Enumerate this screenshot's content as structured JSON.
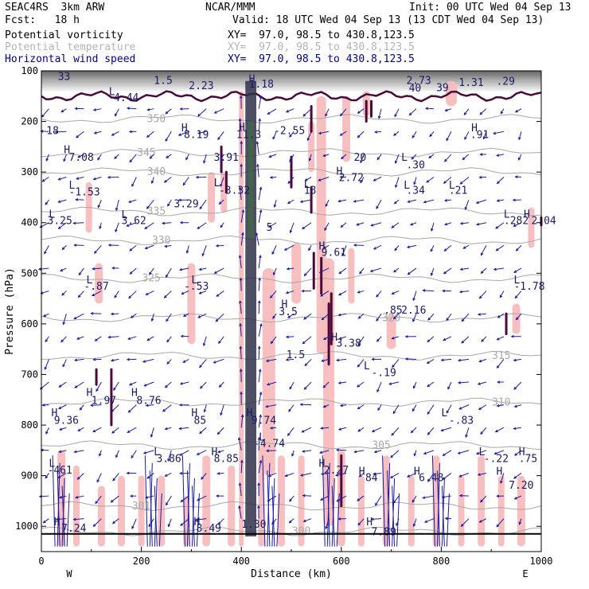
{
  "header": {
    "model": "SEAC4RS  3km ARW",
    "center": "NCAR/MMM",
    "init": "Init: 00 UTC Wed 04 Sep 13",
    "fcst": "Fcst:   18 h",
    "valid": "Valid: 18 UTC Wed 04 Sep 13 (13 CDT Wed 04 Sep 13)"
  },
  "fields": [
    {
      "name": "Potential vorticity",
      "xy": "XY=  97.0, 98.5 to 430.8,123.5",
      "color": "#000000"
    },
    {
      "name": "Potential temperature",
      "xy": "XY=  97.0, 98.5 to 430.8,123.5",
      "color": "#b4b4b4"
    },
    {
      "name": "Horizontal wind speed",
      "xy": "XY=  97.0, 98.5 to 430.8,123.5",
      "color": "#00008b"
    }
  ],
  "colors": {
    "pv_contour": "#4a0a3c",
    "pv_fill": "#f7bcbc",
    "theta": "#a8a8a8",
    "wind": "#1a1aa6",
    "hl": "#1a1a66",
    "upper_shade": "#6e6e6e"
  },
  "chart_data": {
    "type": "cross-section",
    "xlabel": "Distance (km)",
    "ylabel": "Pressure (hPa)",
    "xlim": [
      0,
      1000
    ],
    "ylim": [
      1050,
      100
    ],
    "x_ticks": [
      "0",
      "200",
      "400",
      "600",
      "800",
      "1000"
    ],
    "y_ticks": [
      "100",
      "200",
      "300",
      "400",
      "500",
      "600",
      "700",
      "800",
      "900",
      "1000"
    ],
    "endpoints": {
      "left": "W",
      "right": "E"
    },
    "theta_isentropes": [
      {
        "label": "350",
        "p": 195
      },
      {
        "label": "345",
        "p": 262
      },
      {
        "label": "340",
        "p": 300
      },
      {
        "label": "335",
        "p": 378
      },
      {
        "label": "330",
        "p": 435
      },
      {
        "label": "325",
        "p": 510
      },
      {
        "label": "320",
        "p": 588
      },
      {
        "label": "315",
        "p": 663
      },
      {
        "label": "310",
        "p": 755
      },
      {
        "label": "305",
        "p": 840
      },
      {
        "label": "301",
        "p": 960
      },
      {
        "label": "300",
        "p": 1010
      }
    ],
    "hl_labels": [
      {
        "t": "33",
        "x": 33,
        "p": 110
      },
      {
        "t": "1.5",
        "x": 225,
        "p": 118
      },
      {
        "t": "2.23",
        "x": 295,
        "p": 128
      },
      {
        "t": "H",
        "x": 415,
        "p": 115
      },
      {
        "t": "1.18",
        "x": 415,
        "p": 125
      },
      {
        "t": "2.73",
        "x": 730,
        "p": 118
      },
      {
        "t": "40",
        "x": 735,
        "p": 133
      },
      {
        "t": "39",
        "x": 790,
        "p": 132
      },
      {
        "t": "1.31",
        "x": 835,
        "p": 122
      },
      {
        "t": ".29",
        "x": 910,
        "p": 120
      },
      {
        "t": "L",
        "x": 135,
        "p": 140
      },
      {
        "t": "4.44",
        "x": 145,
        "p": 152
      },
      {
        "t": "18",
        "x": 10,
        "p": 217
      },
      {
        "t": "H",
        "x": 280,
        "p": 212
      },
      {
        "t": "8.19",
        "x": 285,
        "p": 225
      },
      {
        "t": "H",
        "x": 395,
        "p": 210
      },
      {
        "t": "11.3",
        "x": 390,
        "p": 225
      },
      {
        "t": "-2.55",
        "x": 465,
        "p": 217
      },
      {
        "t": "H",
        "x": 860,
        "p": 212
      },
      {
        "t": ".91",
        "x": 858,
        "p": 225
      },
      {
        "t": "H",
        "x": 45,
        "p": 255
      },
      {
        "t": "7.08",
        "x": 55,
        "p": 270
      },
      {
        "t": "3.91",
        "x": 345,
        "p": 270
      },
      {
        "t": "20",
        "x": 625,
        "p": 270
      },
      {
        "t": "L",
        "x": 720,
        "p": 270
      },
      {
        "t": ".30",
        "x": 730,
        "p": 285
      },
      {
        "t": "H",
        "x": 590,
        "p": 297
      },
      {
        "t": "2.72",
        "x": 595,
        "p": 310
      },
      {
        "t": "L",
        "x": 55,
        "p": 325
      },
      {
        "t": "-1.53",
        "x": 55,
        "p": 338
      },
      {
        "t": "L",
        "x": 345,
        "p": 320
      },
      {
        "t": "-3.32",
        "x": 355,
        "p": 335
      },
      {
        "t": "L",
        "x": 525,
        "p": 323
      },
      {
        "t": "18",
        "x": 525,
        "p": 335
      },
      {
        "t": "L",
        "x": 725,
        "p": 325
      },
      {
        "t": ".34",
        "x": 730,
        "p": 335
      },
      {
        "t": "L",
        "x": 815,
        "p": 325
      },
      {
        "t": ".21",
        "x": 815,
        "p": 335
      },
      {
        "t": "3.29",
        "x": 265,
        "p": 362
      },
      {
        "t": "L",
        "x": 15,
        "p": 382
      },
      {
        "t": "3.25",
        "x": 12,
        "p": 395
      },
      {
        "t": "L",
        "x": 160,
        "p": 383
      },
      {
        "t": "3.62",
        "x": 160,
        "p": 395
      },
      {
        "t": "L",
        "x": 925,
        "p": 382
      },
      {
        "t": ".282",
        "x": 925,
        "p": 395
      },
      {
        "t": "H",
        "x": 965,
        "p": 382
      },
      {
        "t": "2.04",
        "x": 980,
        "p": 395
      },
      {
        "t": "5",
        "x": 450,
        "p": 408
      },
      {
        "t": "H",
        "x": 555,
        "p": 445
      },
      {
        "t": "9.61",
        "x": 560,
        "p": 458
      },
      {
        "t": "L",
        "x": 90,
        "p": 512
      },
      {
        "t": "-.87",
        "x": 85,
        "p": 525
      },
      {
        "t": "L",
        "x": 300,
        "p": 512
      },
      {
        "t": "-.53",
        "x": 285,
        "p": 525
      },
      {
        "t": "L",
        "x": 945,
        "p": 512
      },
      {
        "t": "-1.78",
        "x": 945,
        "p": 525
      },
      {
        "t": "H",
        "x": 480,
        "p": 560
      },
      {
        "t": "3.5",
        "x": 475,
        "p": 575
      },
      {
        "t": ".85",
        "x": 685,
        "p": 572
      },
      {
        "t": "2.16",
        "x": 720,
        "p": 572
      },
      {
        "t": "H",
        "x": 580,
        "p": 625
      },
      {
        "t": "3.38",
        "x": 590,
        "p": 637
      },
      {
        "t": "1.5",
        "x": 490,
        "p": 660
      },
      {
        "t": "L",
        "x": 645,
        "p": 682
      },
      {
        "t": "-.19",
        "x": 660,
        "p": 695
      },
      {
        "t": "H",
        "x": 90,
        "p": 735
      },
      {
        "t": "1.97",
        "x": 100,
        "p": 750
      },
      {
        "t": "H",
        "x": 180,
        "p": 735
      },
      {
        "t": "8.76",
        "x": 190,
        "p": 750
      },
      {
        "t": "H",
        "x": 20,
        "p": 775
      },
      {
        "t": "9.36",
        "x": 25,
        "p": 790
      },
      {
        "t": "H",
        "x": 300,
        "p": 775
      },
      {
        "t": "85",
        "x": 305,
        "p": 790
      },
      {
        "t": "H",
        "x": 410,
        "p": 775
      },
      {
        "t": "9.74",
        "x": 420,
        "p": 790
      },
      {
        "t": "L",
        "x": 800,
        "p": 775
      },
      {
        "t": "-.83",
        "x": 815,
        "p": 790
      },
      {
        "t": "L",
        "x": 435,
        "p": 823
      },
      {
        "t": "-4.74",
        "x": 425,
        "p": 835
      },
      {
        "t": "L",
        "x": 225,
        "p": 852
      },
      {
        "t": "3.86",
        "x": 230,
        "p": 865
      },
      {
        "t": "H",
        "x": 340,
        "p": 852
      },
      {
        "t": "8.85",
        "x": 345,
        "p": 865
      },
      {
        "t": "H",
        "x": 955,
        "p": 852
      },
      {
        "t": ".75",
        "x": 955,
        "p": 865
      },
      {
        "t": "L",
        "x": 875,
        "p": 852
      },
      {
        "t": "-.22",
        "x": 885,
        "p": 865
      },
      {
        "t": "L",
        "x": 15,
        "p": 875
      },
      {
        "t": "-461",
        "x": 12,
        "p": 888
      },
      {
        "t": "H",
        "x": 555,
        "p": 875
      },
      {
        "t": "2.27",
        "x": 565,
        "p": 888
      },
      {
        "t": "H",
        "x": 745,
        "p": 890
      },
      {
        "t": "6.48",
        "x": 755,
        "p": 903
      },
      {
        "t": "H",
        "x": 910,
        "p": 890
      },
      {
        "t": "7.20",
        "x": 935,
        "p": 918
      },
      {
        "t": "H",
        "x": 635,
        "p": 890
      },
      {
        "t": "84",
        "x": 648,
        "p": 903
      },
      {
        "t": "H",
        "x": 25,
        "p": 990
      },
      {
        "t": "7.24",
        "x": 40,
        "p": 1003
      },
      {
        "t": "H",
        "x": 305,
        "p": 990
      },
      {
        "t": "8.49",
        "x": 310,
        "p": 1003
      },
      {
        "t": "H",
        "x": 650,
        "p": 990
      },
      {
        "t": "7.89",
        "x": 660,
        "p": 1010
      },
      {
        "t": "1.30",
        "x": 400,
        "p": 995
      }
    ]
  }
}
